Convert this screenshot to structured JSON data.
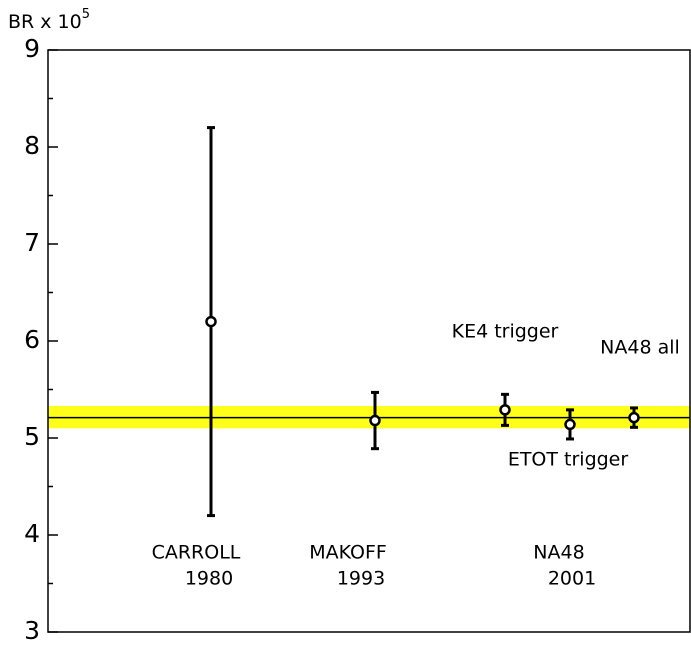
{
  "chart_data": {
    "type": "errorbar",
    "ylabel": {
      "base": "BR x 10",
      "exponent": "5"
    },
    "ylim": [
      3,
      9
    ],
    "yticks": [
      3,
      4,
      5,
      6,
      7,
      8,
      9
    ],
    "groups": [
      {
        "name": "CARROLL",
        "year": "1980"
      },
      {
        "name": "MAKOFF",
        "year": "1993"
      },
      {
        "name": "NA48",
        "year": "2001"
      }
    ],
    "points": [
      {
        "label": null,
        "value": 6.2,
        "error": 2.0
      },
      {
        "label": null,
        "value": 5.18,
        "error": 0.29
      },
      {
        "label": "KE4 trigger",
        "value": 5.29,
        "error": 0.16
      },
      {
        "label": "ETOT trigger",
        "value": 5.14,
        "error": 0.15
      },
      {
        "label": "NA48 all",
        "value": 5.21,
        "error": 0.1
      }
    ],
    "reference": 5.21,
    "band": [
      5.1,
      5.33
    ],
    "band_color": "#ffff1a",
    "color": "#000000"
  }
}
